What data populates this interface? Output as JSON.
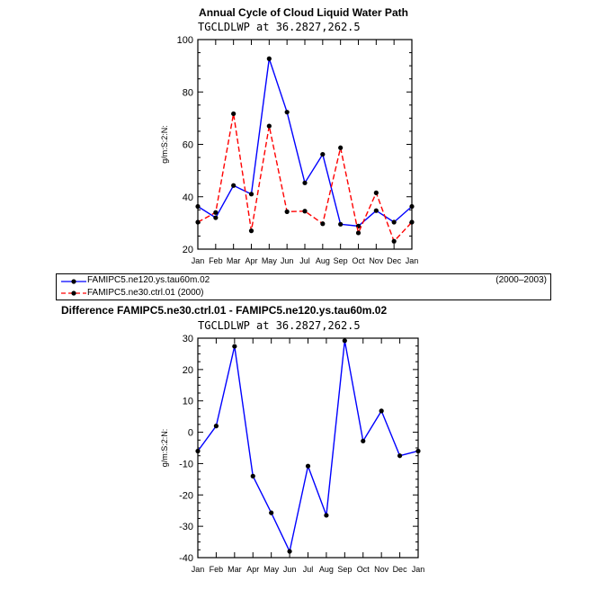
{
  "chart_data": [
    {
      "type": "line",
      "title": "Annual Cycle of Cloud Liquid Water Path",
      "subtitle": "TGCLDLWP  at  36.2827,262.5",
      "ylabel": "g/m:S:2:N:",
      "xlabel": "",
      "categories": [
        "Jan",
        "Feb",
        "Mar",
        "Apr",
        "May",
        "Jun",
        "Jul",
        "Aug",
        "Sep",
        "Oct",
        "Nov",
        "Dec",
        "Jan"
      ],
      "ylim": [
        20,
        100
      ],
      "yticks": [
        20,
        40,
        60,
        80,
        100
      ],
      "series": [
        {
          "name": "FAMIPC5.ne120.ys.tau60m.02",
          "period": "(2000–2003)",
          "color": "#0000ff",
          "dash": "solid",
          "values": [
            36.3,
            32.0,
            44.3,
            41.0,
            92.7,
            72.3,
            45.3,
            56.2,
            29.5,
            28.8,
            34.7,
            30.3,
            36.3
          ]
        },
        {
          "name": "FAMIPC5.ne30.ctrl.01",
          "period": "(2000)",
          "color": "#ff0000",
          "dash": "dashed",
          "values": [
            30.3,
            34.0,
            71.7,
            27.0,
            67.0,
            34.3,
            34.5,
            29.7,
            58.7,
            26.2,
            41.5,
            23.0,
            30.3
          ]
        }
      ]
    },
    {
      "type": "line",
      "title": "Difference FAMIPC5.ne30.ctrl.01 - FAMIPC5.ne120.ys.tau60m.02",
      "subtitle": "TGCLDLWP  at  36.2827,262.5",
      "ylabel": "g/m:S:2:N:",
      "xlabel": "",
      "categories": [
        "Jan",
        "Feb",
        "Mar",
        "Apr",
        "May",
        "Jun",
        "Jul",
        "Aug",
        "Sep",
        "Oct",
        "Nov",
        "Dec",
        "Jan"
      ],
      "ylim": [
        -40,
        30
      ],
      "yticks": [
        -40,
        -30,
        -20,
        -10,
        0,
        10,
        20,
        30
      ],
      "series": [
        {
          "name": "Difference",
          "color": "#0000ff",
          "dash": "solid",
          "values": [
            -6.0,
            2.0,
            27.4,
            -14.0,
            -25.7,
            -38.0,
            -10.8,
            -26.5,
            29.2,
            -2.8,
            6.8,
            -7.5,
            -6.0
          ]
        }
      ]
    }
  ]
}
